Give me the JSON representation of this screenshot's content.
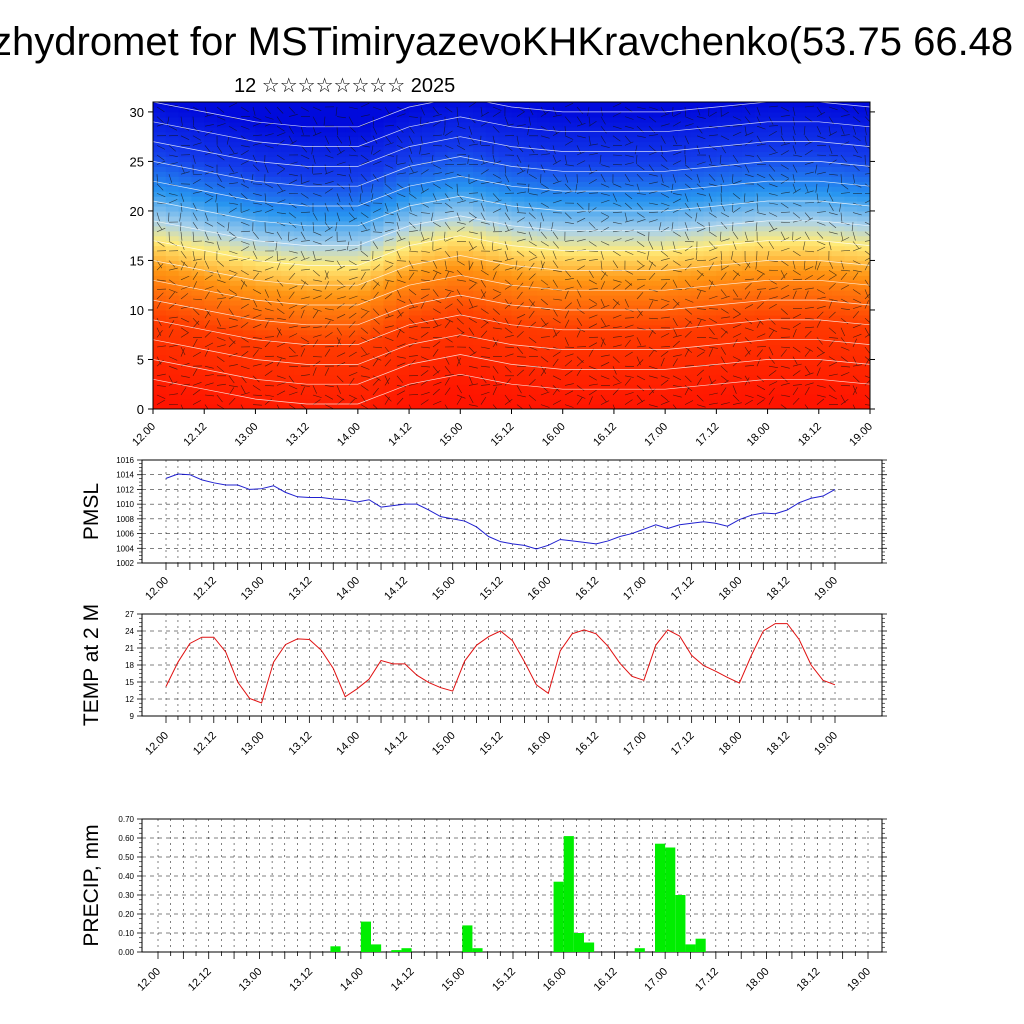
{
  "header": {
    "title": "zhydromet for MSTimiryazevoKHKravchenko(53.75 66.48",
    "subtitle": "12 ☆☆☆☆☆☆☆☆ 2025"
  },
  "time_labels": [
    "12.00",
    "12.12",
    "13.00",
    "13.12",
    "14.00",
    "14.12",
    "15.00",
    "15.12",
    "16.00",
    "16.12",
    "17.00",
    "17.12",
    "18.00",
    "18.12",
    "19.00"
  ],
  "chart_data": [
    {
      "type": "heatmap",
      "title": "",
      "y_ticks": [
        0,
        5,
        10,
        15,
        20,
        25,
        30
      ],
      "ylim": [
        0,
        31
      ],
      "x_tick_labels": [
        "12.00",
        "12.12",
        "13.00",
        "13.12",
        "14.00",
        "14.12",
        "15.00",
        "15.12",
        "16.00",
        "16.12",
        "17.00",
        "17.12",
        "18.00",
        "18.12",
        "19.00"
      ],
      "colors": {
        "low_level": "#ff1a00",
        "mid": "#ffee80",
        "high_level": "#0010e0"
      },
      "overlay": "wind barbs (black) and contour lines (white)",
      "transition_level": [
        17,
        16,
        15,
        14.5,
        14.5,
        16.5,
        17.5,
        16.5,
        16,
        16,
        16,
        16.5,
        17,
        17,
        16.5
      ]
    },
    {
      "type": "line",
      "ylabel": "PMSL",
      "ylim": [
        1002,
        1016
      ],
      "y_ticks": [
        1002,
        1004,
        1006,
        1008,
        1010,
        1012,
        1014,
        1016
      ],
      "line_color": "#2020d0",
      "x_tick_labels": [
        "12.00",
        "12.12",
        "13.00",
        "13.12",
        "14.00",
        "14.12",
        "15.00",
        "15.12",
        "16.00",
        "16.12",
        "17.00",
        "17.12",
        "18.00",
        "18.12",
        "19.00"
      ],
      "values": [
        1013.5,
        1014.1,
        1014.0,
        1013.3,
        1012.9,
        1012.6,
        1012.6,
        1012.0,
        1012.1,
        1012.5,
        1011.6,
        1011.0,
        1010.9,
        1010.9,
        1010.7,
        1010.6,
        1010.3,
        1010.6,
        1009.6,
        1009.8,
        1010.0,
        1010.0,
        1009.2,
        1008.3,
        1008.0,
        1007.7,
        1006.9,
        1005.6,
        1004.9,
        1004.6,
        1004.4,
        1003.9,
        1004.4,
        1005.2,
        1005.0,
        1004.8,
        1004.6,
        1005.0,
        1005.6,
        1006.0,
        1006.6,
        1007.2,
        1006.7,
        1007.2,
        1007.4,
        1007.6,
        1007.4,
        1007.0,
        1007.9,
        1008.5,
        1008.8,
        1008.7,
        1009.2,
        1010.2,
        1010.8,
        1011.1,
        1012.0
      ]
    },
    {
      "type": "line",
      "ylabel": "TEMP at 2 M",
      "ylim": [
        9,
        27
      ],
      "y_ticks": [
        9,
        12,
        15,
        18,
        21,
        24,
        27
      ],
      "line_color": "#e01010",
      "x_tick_labels": [
        "12.00",
        "12.12",
        "13.00",
        "13.12",
        "14.00",
        "14.12",
        "15.00",
        "15.12",
        "16.00",
        "16.12",
        "17.00",
        "17.12",
        "18.00",
        "18.12",
        "19.00"
      ],
      "values": [
        14.2,
        18.5,
        21.8,
        22.9,
        22.9,
        20.3,
        15.0,
        12.1,
        11.3,
        18.5,
        21.6,
        22.6,
        22.5,
        20.6,
        17.4,
        12.4,
        13.8,
        15.5,
        18.8,
        18.2,
        18.2,
        16.2,
        14.9,
        14.0,
        13.4,
        18.7,
        21.5,
        23.0,
        24.0,
        22.3,
        18.6,
        14.5,
        13.0,
        20.5,
        23.5,
        24.2,
        23.5,
        21.3,
        18.3,
        16.0,
        15.3,
        21.5,
        24.2,
        23.1,
        19.7,
        17.9,
        16.9,
        15.8,
        14.8,
        19.7,
        24.0,
        25.3,
        25.3,
        22.5,
        18.0,
        15.3,
        14.5
      ]
    },
    {
      "type": "bar",
      "ylabel": "PRECIP, mm",
      "ylim": [
        0,
        0.7
      ],
      "y_ticks": [
        "0.00",
        "0.10",
        "0.20",
        "0.30",
        "0.40",
        "0.50",
        "0.60",
        "0.70"
      ],
      "bar_color": "#00ee00",
      "x_tick_labels": [
        "12.00",
        "12.12",
        "13.00",
        "13.12",
        "14.00",
        "14.12",
        "15.00",
        "15.12",
        "16.00",
        "16.12",
        "17.00",
        "17.12",
        "18.00",
        "18.12",
        "19.00"
      ],
      "values": [
        0,
        0,
        0,
        0,
        0,
        0,
        0,
        0,
        0,
        0,
        0,
        0,
        0,
        0,
        0,
        0,
        0,
        0.03,
        0,
        0,
        0.16,
        0.04,
        0,
        0.01,
        0.02,
        0,
        0,
        0,
        0,
        0,
        0.14,
        0.02,
        0,
        0,
        0,
        0,
        0,
        0,
        0,
        0.37,
        0.61,
        0.1,
        0.05,
        0,
        0,
        0,
        0,
        0.02,
        0,
        0.57,
        0.55,
        0.3,
        0.04,
        0.07,
        0,
        0,
        0,
        0,
        0,
        0,
        0,
        0,
        0,
        0,
        0,
        0,
        0,
        0,
        0,
        0
      ]
    }
  ]
}
